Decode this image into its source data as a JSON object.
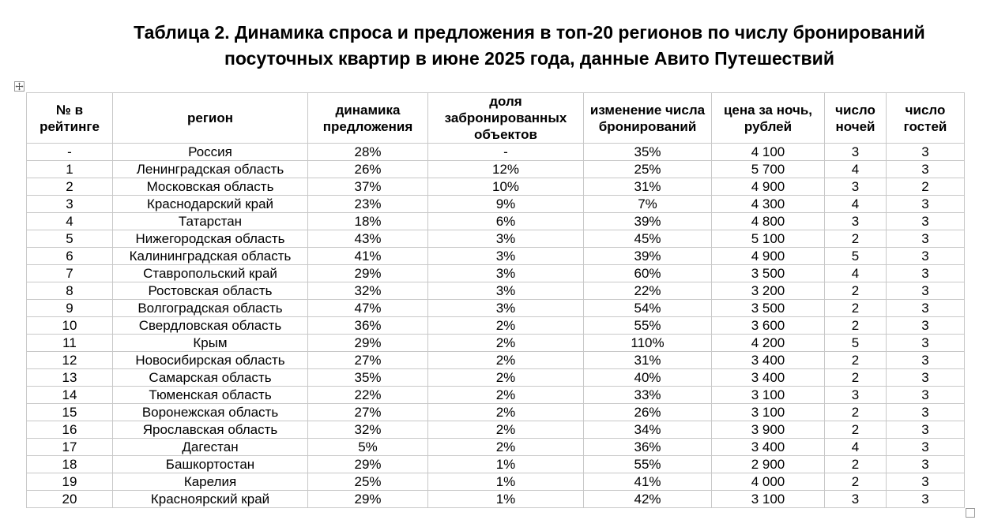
{
  "title": {
    "line1": "Таблица 2. Динамика спроса и предложения в топ-20 регионов по числу бронирований",
    "line2": "посуточных квартир в июне 2025 года, данные Авито Путешествий"
  },
  "icons": {
    "table_move": "move-arrows-icon",
    "table_resize": "resize-square-icon"
  },
  "table": {
    "headers": [
      "№ в рейтинге",
      "регион",
      "динамика предложения",
      "доля забронированных объектов",
      "изменение числа бронирований",
      "цена за ночь, рублей",
      "число ночей",
      "число гостей"
    ],
    "rows": [
      [
        "-",
        "Россия",
        "28%",
        "-",
        "35%",
        "4 100",
        "3",
        "3"
      ],
      [
        "1",
        "Ленинградская область",
        "26%",
        "12%",
        "25%",
        "5 700",
        "4",
        "3"
      ],
      [
        "2",
        "Московская область",
        "37%",
        "10%",
        "31%",
        "4 900",
        "3",
        "2"
      ],
      [
        "3",
        "Краснодарский край",
        "23%",
        "9%",
        "7%",
        "4 300",
        "4",
        "3"
      ],
      [
        "4",
        "Татарстан",
        "18%",
        "6%",
        "39%",
        "4 800",
        "3",
        "3"
      ],
      [
        "5",
        "Нижегородская область",
        "43%",
        "3%",
        "45%",
        "5 100",
        "2",
        "3"
      ],
      [
        "6",
        "Калининградская область",
        "41%",
        "3%",
        "39%",
        "4 900",
        "5",
        "3"
      ],
      [
        "7",
        "Ставропольский край",
        "29%",
        "3%",
        "60%",
        "3 500",
        "4",
        "3"
      ],
      [
        "8",
        "Ростовская область",
        "32%",
        "3%",
        "22%",
        "3 200",
        "2",
        "3"
      ],
      [
        "9",
        "Волгоградская область",
        "47%",
        "3%",
        "54%",
        "3 500",
        "2",
        "3"
      ],
      [
        "10",
        "Свердловская область",
        "36%",
        "2%",
        "55%",
        "3 600",
        "2",
        "3"
      ],
      [
        "11",
        "Крым",
        "29%",
        "2%",
        "110%",
        "4 200",
        "5",
        "3"
      ],
      [
        "12",
        "Новосибирская область",
        "27%",
        "2%",
        "31%",
        "3 400",
        "2",
        "3"
      ],
      [
        "13",
        "Самарская область",
        "35%",
        "2%",
        "40%",
        "3 400",
        "2",
        "3"
      ],
      [
        "14",
        "Тюменская область",
        "22%",
        "2%",
        "33%",
        "3 100",
        "3",
        "3"
      ],
      [
        "15",
        "Воронежская область",
        "27%",
        "2%",
        "26%",
        "3 100",
        "2",
        "3"
      ],
      [
        "16",
        "Ярославская область",
        "32%",
        "2%",
        "34%",
        "3 900",
        "2",
        "3"
      ],
      [
        "17",
        "Дагестан",
        "5%",
        "2%",
        "36%",
        "3 400",
        "4",
        "3"
      ],
      [
        "18",
        "Башкортостан",
        "29%",
        "1%",
        "55%",
        "2 900",
        "2",
        "3"
      ],
      [
        "19",
        "Карелия",
        "25%",
        "1%",
        "41%",
        "4 000",
        "2",
        "3"
      ],
      [
        "20",
        "Красноярский край",
        "29%",
        "1%",
        "42%",
        "3 100",
        "3",
        "3"
      ]
    ]
  }
}
